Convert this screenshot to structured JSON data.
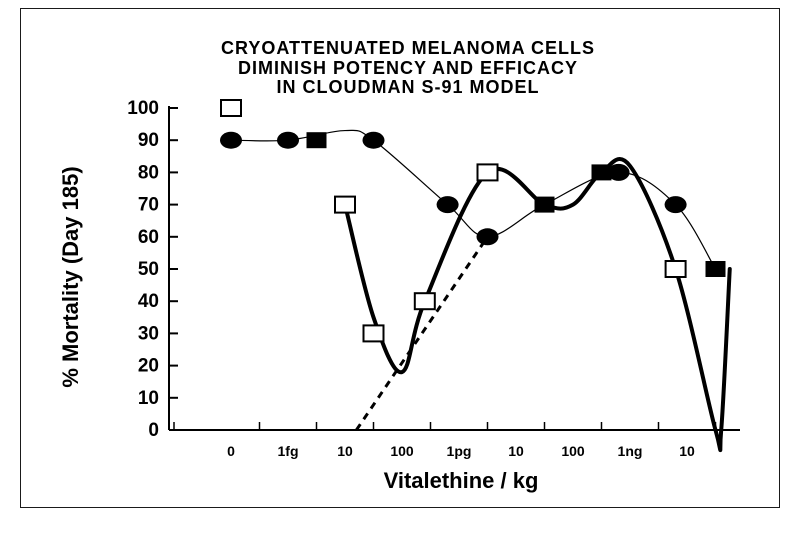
{
  "chart_data": {
    "type": "line",
    "title_lines": [
      "CRYOATTENUATED MELANOMA CELLS",
      "DIMINISH POTENCY AND EFFICACY",
      "IN CLOUDMAN S-91 MODEL"
    ],
    "xlabel": "Vitalethine / kg",
    "ylabel": "% Mortality  (Day 185)",
    "x_tick_labels": [
      "0",
      "1fg",
      "10",
      "100",
      "1pg",
      "10",
      "100",
      "1ng",
      "10"
    ],
    "ylim": [
      0,
      100
    ],
    "y_ticks": [
      0,
      10,
      20,
      30,
      40,
      50,
      60,
      70,
      80,
      90,
      100
    ],
    "series": [
      {
        "marker": "filled-circle",
        "line_style": "thin",
        "points": [
          [
            0,
            90
          ],
          [
            1,
            90
          ],
          [
            2.5,
            90
          ],
          [
            3.8,
            70
          ],
          [
            4.5,
            60
          ],
          [
            6.8,
            80
          ],
          [
            7.8,
            70
          ]
        ]
      },
      {
        "marker": "open-square",
        "line_style": "thick",
        "points": [
          [
            0,
            100
          ],
          [
            2,
            70
          ],
          [
            2.5,
            30
          ],
          [
            3.4,
            40
          ],
          [
            4.5,
            80
          ],
          [
            7.8,
            50
          ]
        ]
      },
      {
        "marker": "filled-square",
        "line_style": "thick",
        "points": [
          [
            1.5,
            90
          ],
          [
            5.5,
            70
          ],
          [
            6.5,
            80
          ],
          [
            8.5,
            50
          ]
        ]
      }
    ],
    "curves": [
      {
        "style": "thin",
        "points": [
          [
            0,
            90
          ],
          [
            1,
            90
          ],
          [
            2,
            93
          ],
          [
            2.5,
            90
          ],
          [
            3.8,
            70
          ],
          [
            4.5,
            60
          ],
          [
            5.5,
            70
          ],
          [
            6.8,
            80
          ],
          [
            7.8,
            70
          ],
          [
            8.5,
            50
          ]
        ]
      },
      {
        "style": "thick",
        "points": [
          [
            2,
            70
          ],
          [
            2.5,
            35
          ],
          [
            3,
            18
          ],
          [
            3.4,
            40
          ],
          [
            4.5,
            80
          ],
          [
            5.5,
            70
          ],
          [
            6,
            70
          ],
          [
            6.5,
            80
          ],
          [
            7,
            82
          ],
          [
            7.8,
            50
          ],
          [
            8.5,
            0
          ],
          [
            8.6,
            0
          ],
          [
            8.75,
            50
          ]
        ]
      },
      {
        "style": "dashed",
        "points": [
          [
            2.2,
            0
          ],
          [
            4.5,
            60
          ]
        ]
      }
    ],
    "colors": {
      "ink": "#000000",
      "frame": "#1a1a1a",
      "background": "#ffffff"
    }
  }
}
